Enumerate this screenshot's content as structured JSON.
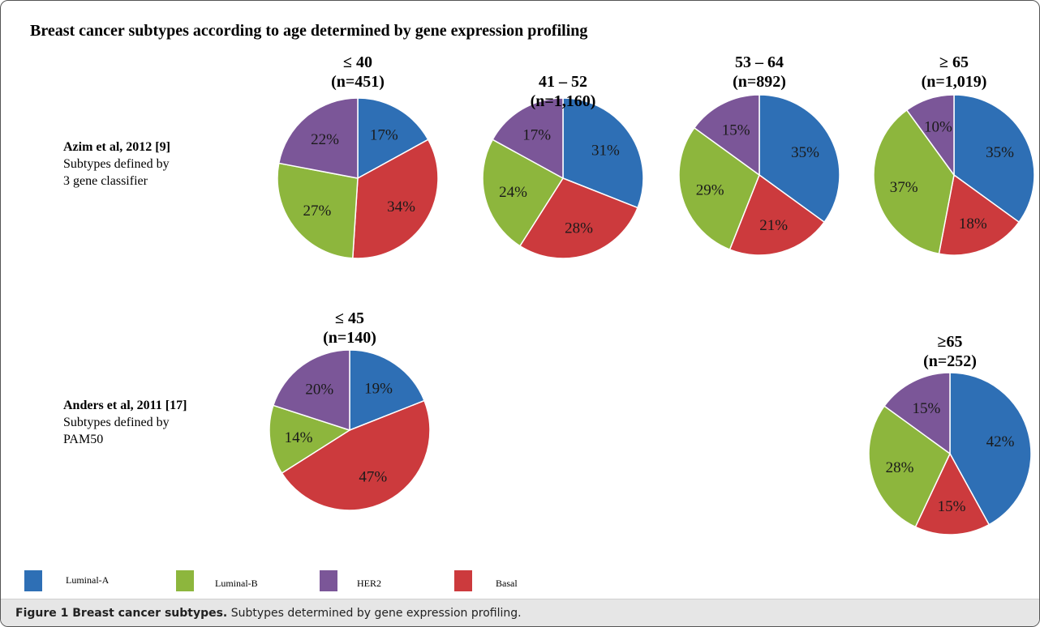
{
  "title": "Breast cancer subtypes according to age determined by gene expression profiling",
  "studies": [
    {
      "name": "Azim et al, 2012 [9]",
      "description": "Subtypes defined by\n3 gene classifier"
    },
    {
      "name": "Anders et al, 2011 [17]",
      "description": "Subtypes defined by\nPAM50"
    }
  ],
  "colors": {
    "Luminal-A": "#2e6fb5",
    "Luminal-B": "#8db63d",
    "HER2": "#7b5698",
    "Basal": "#cc3a3d"
  },
  "legend": [
    "Luminal-A",
    "Luminal-B",
    "HER2",
    "Basal"
  ],
  "chart_data": [
    {
      "type": "pie",
      "study": "Azim et al, 2012 [9]",
      "title": "≤ 40",
      "subtitle": "(n=451)",
      "categories": [
        "Luminal-A",
        "Basal",
        "Luminal-B",
        "HER2"
      ],
      "values": [
        17,
        34,
        27,
        22
      ]
    },
    {
      "type": "pie",
      "study": "Azim et al, 2012 [9]",
      "title": "41 – 52",
      "subtitle": "(n=1,160)",
      "categories": [
        "Luminal-A",
        "Basal",
        "Luminal-B",
        "HER2"
      ],
      "values": [
        31,
        28,
        24,
        17
      ]
    },
    {
      "type": "pie",
      "study": "Azim et al, 2012 [9]",
      "title": "53 – 64",
      "subtitle": "(n=892)",
      "categories": [
        "Luminal-A",
        "Basal",
        "Luminal-B",
        "HER2"
      ],
      "values": [
        35,
        21,
        29,
        15
      ]
    },
    {
      "type": "pie",
      "study": "Azim et al, 2012 [9]",
      "title": "≥ 65",
      "subtitle": "(n=1,019)",
      "categories": [
        "Luminal-A",
        "Basal",
        "Luminal-B",
        "HER2"
      ],
      "values": [
        35,
        18,
        37,
        10
      ]
    },
    {
      "type": "pie",
      "study": "Anders et al, 2011 [17]",
      "title": "≤ 45",
      "subtitle": "(n=140)",
      "categories": [
        "Luminal-A",
        "Basal",
        "Luminal-B",
        "HER2"
      ],
      "values": [
        19,
        47,
        14,
        20
      ]
    },
    {
      "type": "pie",
      "study": "Anders et al, 2011 [17]",
      "title": "≥65",
      "subtitle": "(n=252)",
      "categories": [
        "Luminal-A",
        "Basal",
        "Luminal-B",
        "HER2"
      ],
      "values": [
        42,
        15,
        28,
        15
      ]
    }
  ],
  "caption": {
    "label": "Figure 1 Breast cancer subtypes.",
    "text": " Subtypes determined by gene expression profiling."
  }
}
